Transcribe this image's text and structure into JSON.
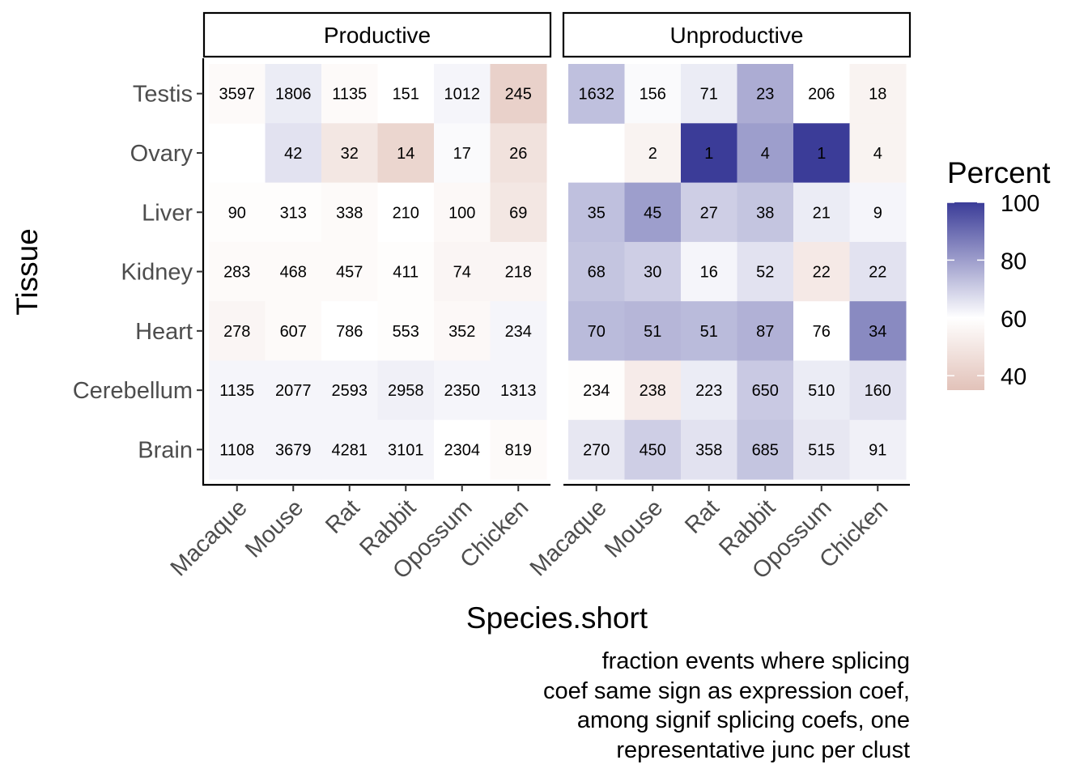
{
  "chart_data": {
    "type": "heatmap",
    "xlabel": "Species.short",
    "ylabel": "Tissue",
    "species": [
      "Macaque",
      "Mouse",
      "Rat",
      "Rabbit",
      "Opossum",
      "Chicken"
    ],
    "tissues": [
      "Testis",
      "Ovary",
      "Liver",
      "Kidney",
      "Heart",
      "Cerebellum",
      "Brain"
    ],
    "legend": {
      "title": "Percent",
      "ticks": [
        "100",
        "80",
        "60",
        "40"
      ],
      "range": [
        35,
        100
      ],
      "low_color": "#e2c2b9",
      "mid_color": "#ffffff",
      "high_color": "#3b3c98"
    },
    "caption": [
      "fraction events where splicing",
      "coef same sign as expression coef,",
      "among signif splicing coefs, one",
      "representative junc per clust"
    ],
    "facets": [
      {
        "name": "Productive",
        "labels": [
          [
            "3597",
            "1806",
            "1135",
            "151",
            "1012",
            "245"
          ],
          [
            "",
            "42",
            "32",
            "14",
            "17",
            "26"
          ],
          [
            "90",
            "313",
            "338",
            "210",
            "100",
            "69"
          ],
          [
            "283",
            "468",
            "457",
            "411",
            "74",
            "218"
          ],
          [
            "278",
            "607",
            "786",
            "553",
            "352",
            "234"
          ],
          [
            "1135",
            "2077",
            "2593",
            "2958",
            "2350",
            "1313"
          ],
          [
            "1108",
            "3679",
            "4281",
            "3101",
            "2304",
            "819"
          ]
        ],
        "percent": [
          [
            58,
            64,
            58,
            60,
            62,
            41
          ],
          [
            null,
            66,
            50,
            43,
            61,
            48
          ],
          [
            59,
            59,
            58,
            60,
            57,
            50
          ],
          [
            58,
            58,
            58,
            59,
            56,
            56
          ],
          [
            56,
            58,
            60,
            59,
            57,
            62
          ],
          [
            62,
            62,
            62,
            63,
            62,
            62
          ],
          [
            62,
            62,
            62,
            62,
            60,
            58
          ]
        ]
      },
      {
        "name": "Unproductive",
        "labels": [
          [
            "1632",
            "156",
            "71",
            "23",
            "206",
            "18"
          ],
          [
            "",
            "2",
            "1",
            "4",
            "1",
            "4"
          ],
          [
            "35",
            "45",
            "27",
            "38",
            "21",
            "9"
          ],
          [
            "68",
            "30",
            "16",
            "52",
            "22",
            "22"
          ],
          [
            "70",
            "51",
            "51",
            "87",
            "76",
            "34"
          ],
          [
            "234",
            "238",
            "223",
            "650",
            "510",
            "160"
          ],
          [
            "270",
            "450",
            "358",
            "685",
            "515",
            "91"
          ]
        ],
        "percent": [
          [
            73,
            61,
            64,
            77,
            60,
            55
          ],
          [
            null,
            55,
            100,
            80,
            100,
            55
          ],
          [
            73,
            80,
            70,
            72,
            64,
            62
          ],
          [
            72,
            70,
            62,
            66,
            51,
            66
          ],
          [
            74,
            75,
            74,
            76,
            60,
            84
          ],
          [
            59,
            52,
            64,
            71,
            64,
            66
          ],
          [
            65,
            70,
            66,
            72,
            65,
            63
          ]
        ]
      }
    ]
  }
}
